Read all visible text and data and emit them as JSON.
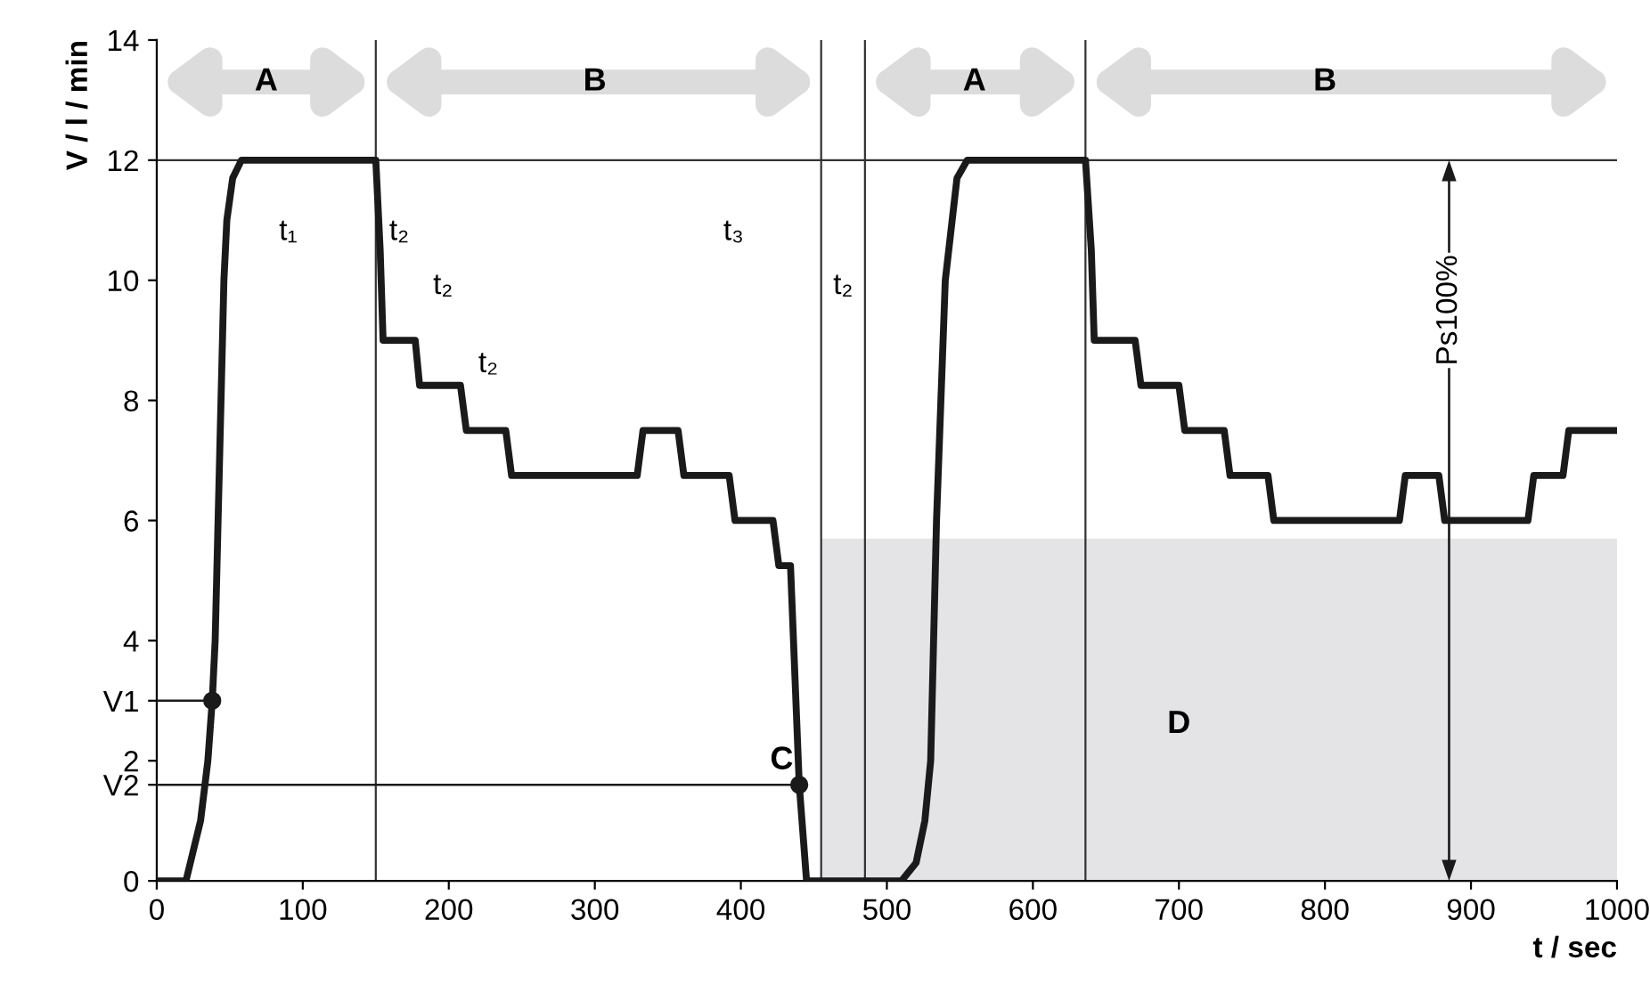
{
  "chart_data": {
    "type": "line",
    "xlabel": "t / sec",
    "ylabel": "V / l / min",
    "xlim": [
      0,
      1000
    ],
    "ylim": [
      0,
      14
    ],
    "xticks": [
      0,
      100,
      200,
      300,
      400,
      500,
      600,
      700,
      800,
      900,
      1000
    ],
    "yticks": [
      0,
      {
        "value": 1.6,
        "label": "V2"
      },
      2,
      {
        "value": 3,
        "label": "V1"
      },
      4,
      6,
      8,
      10,
      12,
      14
    ],
    "grid": false,
    "legend": false,
    "series": [
      {
        "type": "area",
        "color": "#e4e4e6",
        "x": [
          455,
          1000
        ],
        "values": [
          5.7,
          5.7
        ]
      },
      {
        "color": "#1a1a1a",
        "x": [
          0,
          20,
          25,
          30,
          35,
          38,
          40,
          42,
          44,
          46,
          48,
          52,
          58,
          150,
          153,
          155,
          177,
          180,
          208,
          212,
          239,
          243,
          329,
          333,
          357,
          361,
          392,
          396,
          422,
          426,
          434,
          440,
          445,
          455,
          485,
          500,
          510,
          520,
          526,
          530,
          534,
          540,
          548,
          555,
          636,
          640,
          642,
          670,
          674,
          700,
          704,
          731,
          735,
          761,
          765,
          851,
          855,
          878,
          882,
          939,
          943,
          963,
          967,
          1000
        ],
        "values": [
          0,
          0,
          0.5,
          1,
          2,
          3,
          4,
          6,
          8,
          10,
          11,
          11.7,
          12,
          12,
          10.5,
          9,
          9,
          8.25,
          8.25,
          7.5,
          7.5,
          6.75,
          6.75,
          7.5,
          7.5,
          6.75,
          6.75,
          6,
          6,
          5.25,
          5.25,
          1.6,
          0,
          0,
          0,
          0,
          0,
          0.3,
          1,
          2,
          6,
          10,
          11.7,
          12,
          12,
          10.5,
          9,
          9,
          8.25,
          8.25,
          7.5,
          7.5,
          6.75,
          6.75,
          6,
          6,
          6.75,
          6.75,
          6,
          6,
          6.75,
          6.75,
          7.5,
          7.5
        ]
      },
      {
        "type": "line",
        "color": "#1a1a1a",
        "x": [
          0,
          38
        ],
        "values": [
          3,
          3
        ]
      },
      {
        "type": "line",
        "color": "#1a1a1a",
        "x": [
          0,
          440
        ],
        "values": [
          1.6,
          1.6
        ]
      },
      {
        "type": "scatter",
        "color": "#1a1a1a",
        "x": [
          38,
          440
        ],
        "values": [
          3,
          1.6
        ]
      }
    ],
    "ref_lines": [
      {
        "axis": "x",
        "value": 150,
        "color": "#333333"
      },
      {
        "axis": "x",
        "value": 455,
        "color": "#333333"
      },
      {
        "axis": "x",
        "value": 485,
        "color": "#333333"
      },
      {
        "axis": "x",
        "value": 636,
        "color": "#333333"
      },
      {
        "axis": "y",
        "value": 12,
        "color": "#333333"
      }
    ],
    "annotations": [
      "A",
      "B",
      "A",
      "B",
      "t₁",
      "t₂",
      "t₂",
      "t₂",
      "t₃",
      "t₂",
      "Ps100%",
      "C",
      "D"
    ]
  }
}
